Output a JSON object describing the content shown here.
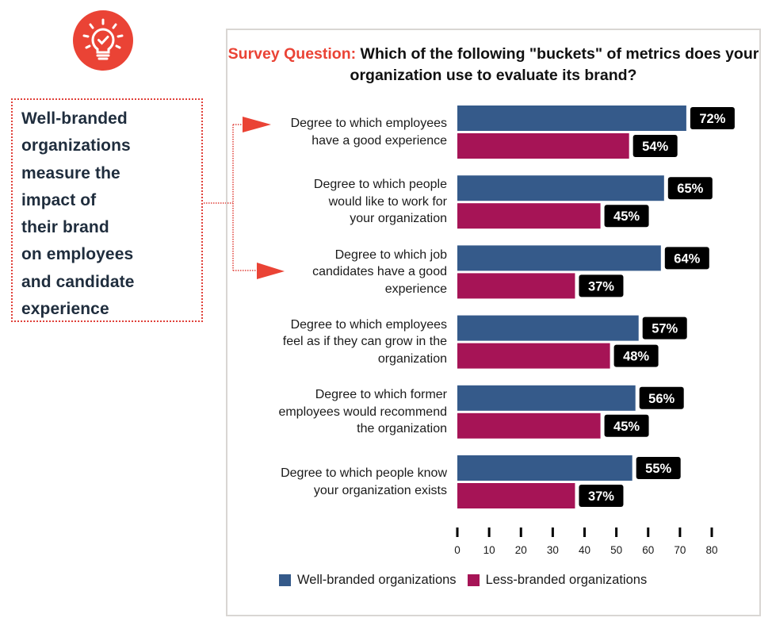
{
  "icon": {
    "name": "lightbulb-check-icon",
    "color": "#ea4335"
  },
  "callout": {
    "text": "Well-branded\norganizations\nmeasure the\nimpact of\ntheir brand\non employees\nand candidate\nexperience",
    "border_color": "#e0413a"
  },
  "title": {
    "prefix": "Survey Question:",
    "text": "Which of the following \"buckets\" of metrics does your organization use to evaluate its brand?"
  },
  "chart_data": {
    "type": "bar",
    "orientation": "horizontal",
    "title": "Survey Question: Which of the following \"buckets\" of metrics does your organization use to evaluate its brand?",
    "categories": [
      "Degree to which employees have a good experience",
      "Degree to which people would like to work for your organization",
      "Degree to which job candidates have a good experience",
      "Degree to which employees feel as if they can grow in the organization",
      "Degree to which former employees would recommend the organization",
      "Degree to which people know your organization exists"
    ],
    "category_lines": [
      [
        "Degree to which employees",
        "have a good experience"
      ],
      [
        "Degree to which people",
        "would like to work for",
        "your organization"
      ],
      [
        "Degree to which job",
        "candidates have a good",
        "experience"
      ],
      [
        "Degree to which employees",
        "feel as if they can grow in the",
        "organization"
      ],
      [
        "Degree to which former",
        "employees would recommend",
        "the organization"
      ],
      [
        "Degree to which people know",
        "your organization exists"
      ]
    ],
    "series": [
      {
        "name": "Well-branded organizations",
        "color": "#355a8a",
        "values": [
          72,
          65,
          64,
          57,
          56,
          55
        ]
      },
      {
        "name": "Less-branded organizations",
        "color": "#a61456",
        "values": [
          54,
          45,
          37,
          48,
          45,
          37
        ]
      }
    ],
    "value_suffix": "%",
    "xlim": [
      0,
      80
    ],
    "xticks": [
      0,
      10,
      20,
      30,
      40,
      50,
      60,
      70,
      80
    ],
    "xlabel": "",
    "ylabel": "",
    "grid": false,
    "legend_position": "bottom",
    "highlighted_categories": [
      0,
      2
    ],
    "data_label_style": {
      "background": "#000000",
      "color": "#ffffff"
    }
  }
}
